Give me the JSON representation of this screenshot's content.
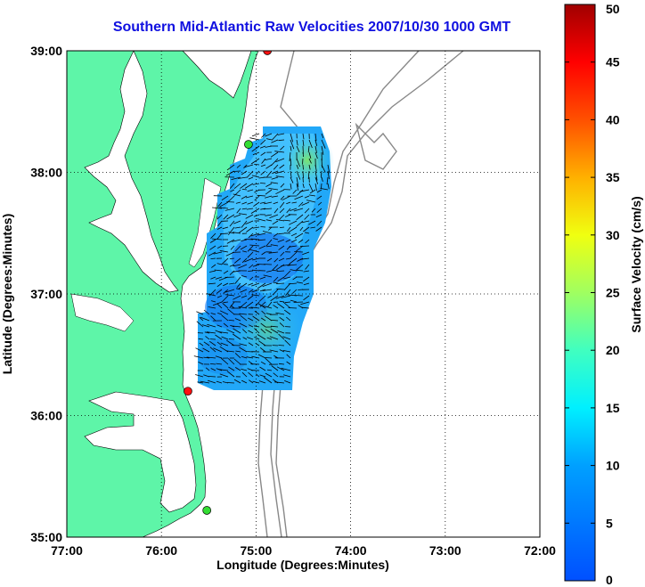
{
  "title": "Southern Mid-Atlantic Raw Velocities 2007/10/30 1000 GMT",
  "xlabel": "Longitude (Degrees:Minutes)",
  "ylabel": "Latitude (Degrees:Minutes)",
  "x_ticks": [
    "77:00",
    "76:00",
    "75:00",
    "74:00",
    "73:00",
    "72:00"
  ],
  "y_ticks": [
    "39:00",
    "38:00",
    "37:00",
    "36:00",
    "35:00"
  ],
  "colorbar": {
    "label": "Surface Velocity (cm/s)",
    "ticks": [
      "0",
      "5",
      "10",
      "15",
      "20",
      "25",
      "30",
      "35",
      "40",
      "45",
      "50"
    ],
    "min": 0,
    "max": 50
  },
  "colors": {
    "land": "#5ef5a8",
    "water": "#ffffff",
    "title": "#1010e0",
    "bathymetry": "#888888",
    "station_red": "#ff1010",
    "station_green": "#33dd33"
  },
  "stations": [
    {
      "lon": -74.88,
      "lat": 39.0,
      "color": "red"
    },
    {
      "lon": -75.08,
      "lat": 38.23,
      "color": "green"
    },
    {
      "lon": -75.72,
      "lat": 36.2,
      "color": "red"
    },
    {
      "lon": -75.52,
      "lat": 35.22,
      "color": "green"
    }
  ]
}
